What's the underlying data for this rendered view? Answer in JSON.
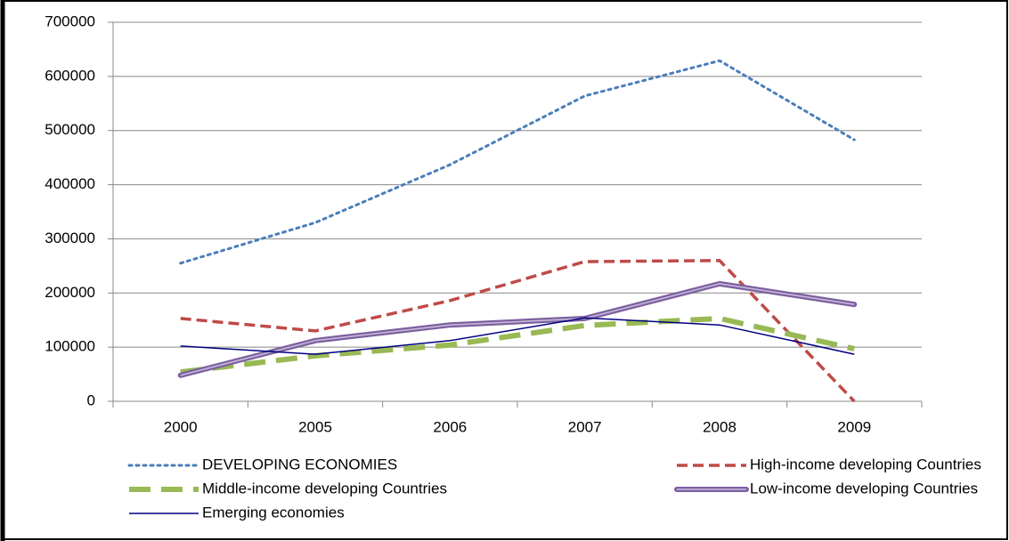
{
  "chart_data": {
    "type": "line",
    "categories": [
      "2000",
      "2005",
      "2006",
      "2007",
      "2008",
      "2009"
    ],
    "series": [
      {
        "name": "DEVELOPING ECONOMIES",
        "color": "#4a7ebb",
        "dash": "dotted",
        "values": [
          255000,
          330000,
          437000,
          564000,
          629000,
          483000
        ]
      },
      {
        "name": "High-income developing Countries",
        "color": "#be4b48",
        "dash": "dashed",
        "values": [
          153000,
          130000,
          186000,
          258000,
          260000,
          0
        ]
      },
      {
        "name": "Middle-income developing Countries",
        "color": "#98b954",
        "dash": "long-dashed",
        "values": [
          54000,
          84000,
          104000,
          140000,
          153000,
          97000
        ]
      },
      {
        "name": "Low-income developing Countries",
        "color": "#7d60a0",
        "dash": "double",
        "values": [
          48000,
          112000,
          141000,
          153000,
          217000,
          179000
        ]
      },
      {
        "name": "Emerging economies",
        "color": "#000080",
        "dash": "solid",
        "values": [
          102000,
          87000,
          112000,
          154000,
          141000,
          87000
        ]
      }
    ],
    "ylim": [
      0,
      700000
    ],
    "yticks": [
      0,
      100000,
      200000,
      300000,
      400000,
      500000,
      600000,
      700000
    ],
    "grid": true,
    "legend": "bottom"
  }
}
